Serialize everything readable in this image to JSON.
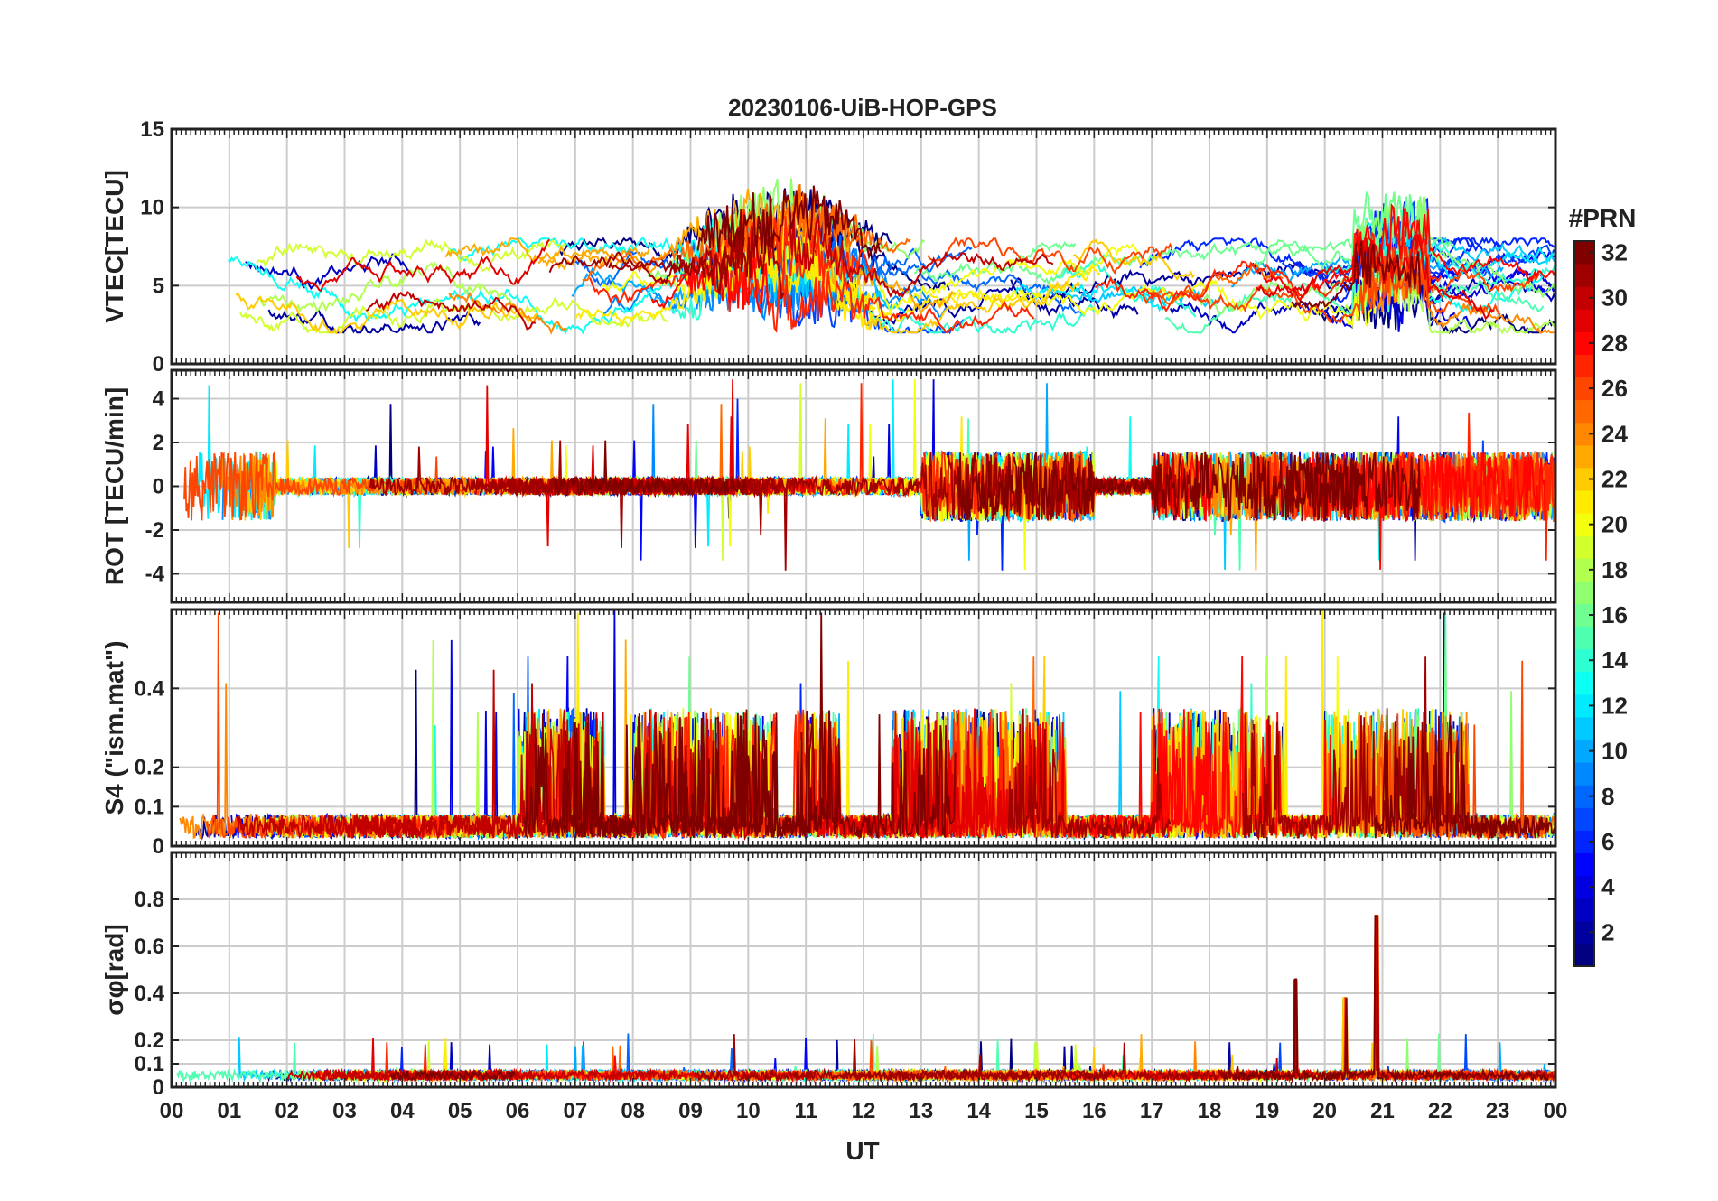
{
  "title": "20230106-UiB-HOP-GPS",
  "xlabel": "UT",
  "x_ticks": [
    "00",
    "01",
    "02",
    "03",
    "04",
    "05",
    "06",
    "07",
    "08",
    "09",
    "10",
    "11",
    "12",
    "13",
    "14",
    "15",
    "16",
    "17",
    "18",
    "19",
    "20",
    "21",
    "22",
    "23",
    "00"
  ],
  "colorbar": {
    "label": "#PRN",
    "ticks": [
      "2",
      "4",
      "6",
      "8",
      "10",
      "12",
      "14",
      "16",
      "18",
      "20",
      "22",
      "24",
      "26",
      "28",
      "30",
      "32"
    ],
    "range": [
      1,
      32
    ],
    "colormap": "jet",
    "colors": [
      "#000080",
      "#0000ff",
      "#0080ff",
      "#00ffff",
      "#80ff80",
      "#ffff00",
      "#ff8000",
      "#ff0000",
      "#800000"
    ]
  },
  "chart_data": [
    {
      "type": "line",
      "ylabel": "VTEC[TECU]",
      "xlim": [
        0,
        24
      ],
      "ylim": [
        0,
        15
      ],
      "yticks": [
        "0",
        "5",
        "10",
        "15"
      ],
      "grid": true,
      "series_summary": "Multiple PRN traces (colored by PRN 1-32); baseline ~3-7 TECU, peaks ~12 TECU near 09-12 UT, ~10.5 TECU near 21 UT",
      "typical_range": [
        2,
        12
      ]
    },
    {
      "type": "line",
      "ylabel": "ROT [TECU/min]",
      "xlim": [
        0,
        24
      ],
      "ylim": [
        -5.3,
        5.3
      ],
      "yticks": [
        "-4",
        "-2",
        "0",
        "2",
        "4"
      ],
      "grid": true,
      "series_summary": "Multiple PRN traces fluctuating around 0; spikes up to ~+4.6 and down to ~-3.8",
      "typical_range": [
        -3.8,
        4.6
      ]
    },
    {
      "type": "line",
      "ylabel": "S4 (\"ism.mat\")",
      "xlim": [
        0,
        24
      ],
      "ylim": [
        0,
        0.6
      ],
      "yticks": [
        "0",
        "0.1",
        "0.2",
        "0.4"
      ],
      "grid": true,
      "series_summary": "Multiple PRN traces; baseline ~0.02-0.1, bursts up to ~0.6 near 06:40, 11:00, 17:40, 18:50 UT",
      "typical_range": [
        0,
        0.6
      ]
    },
    {
      "type": "line",
      "ylabel": "σφ[rad]",
      "xlim": [
        0,
        24
      ],
      "ylim": [
        0,
        1
      ],
      "yticks": [
        "0",
        "0.1",
        "0.2",
        "0.4",
        "0.6",
        "0.8"
      ],
      "grid": true,
      "series_summary": "Multiple PRN traces; baseline ~0.03-0.08 rad, spikes ~0.46 near 19:30 UT, ~0.73 near 20:55 UT",
      "typical_range": [
        0,
        0.73
      ]
    }
  ]
}
